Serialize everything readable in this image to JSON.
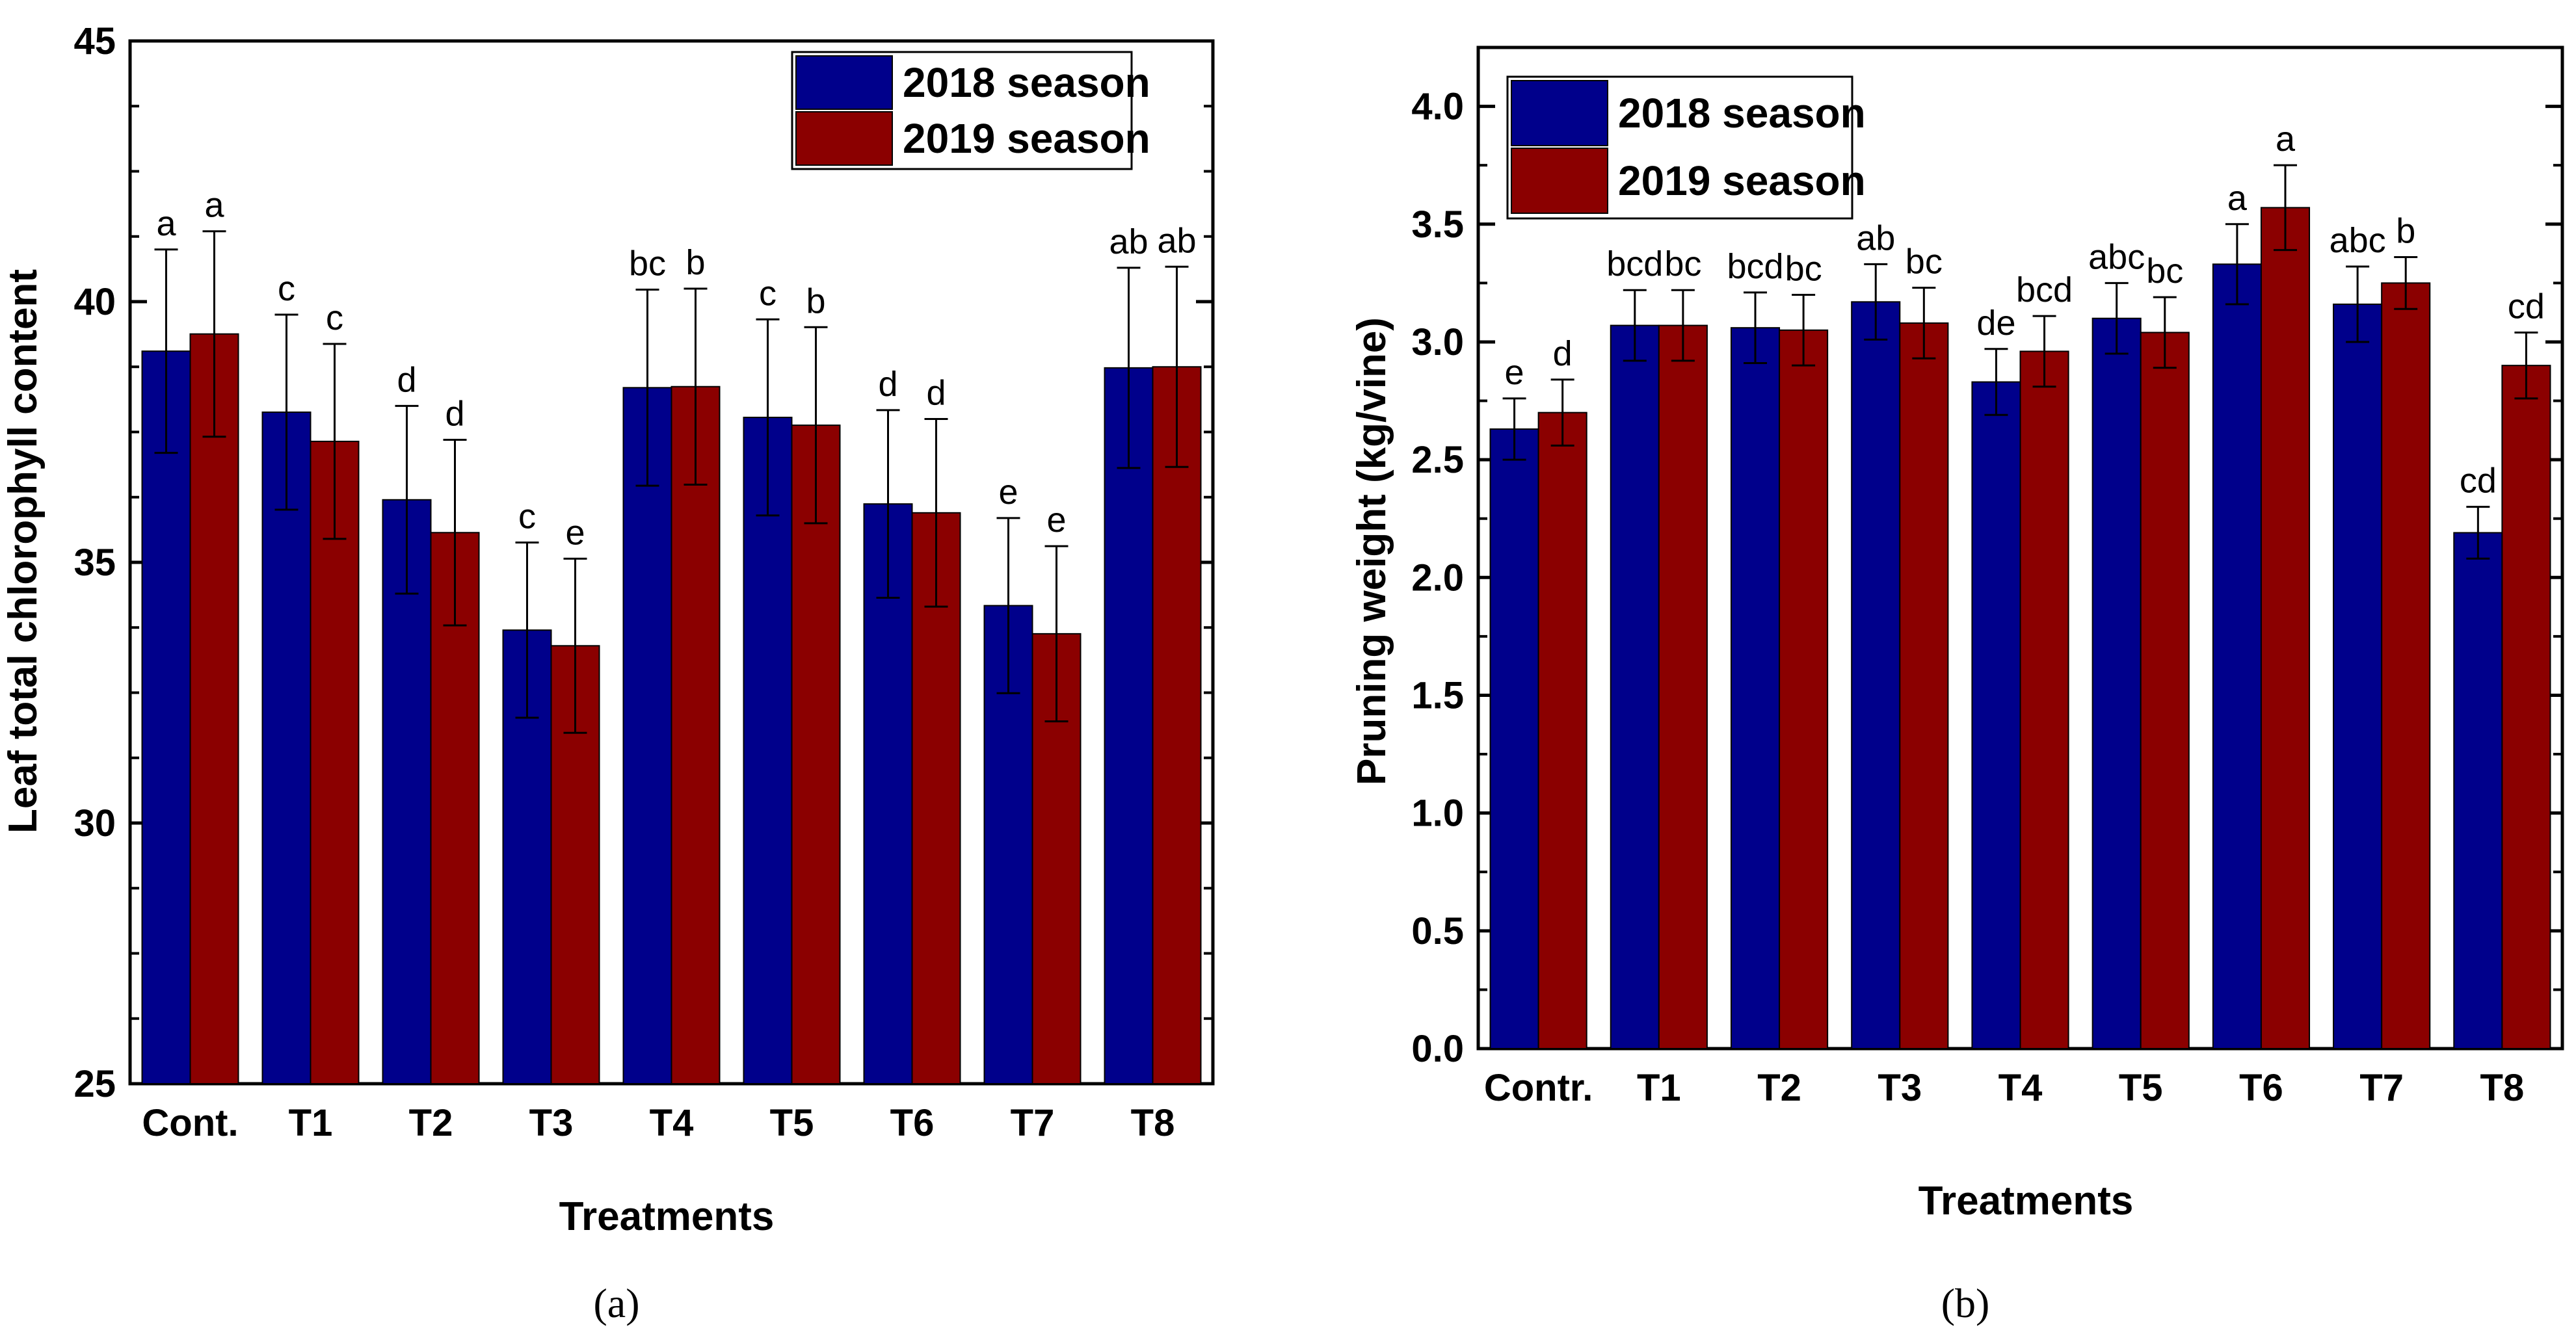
{
  "colors": {
    "season_2018": "#00008B",
    "season_2019": "#8B0000",
    "axis": "#000000"
  },
  "chart_data": [
    {
      "type": "bar",
      "panel_label": "(a)",
      "xlabel": "Treatments",
      "ylabel": "Leaf total chlorophyll content",
      "ylim": [
        25,
        45
      ],
      "yticks": [
        25,
        30,
        35,
        40,
        45
      ],
      "categories": [
        "Cont.",
        "T1",
        "T2",
        "T3",
        "T4",
        "T5",
        "T6",
        "T7",
        "T8"
      ],
      "legend_position": "top-right",
      "series": [
        {
          "name": "2018 season",
          "values": [
            39.05,
            37.88,
            36.2,
            33.7,
            38.35,
            37.78,
            36.12,
            34.17,
            38.73
          ],
          "errors": [
            1.95,
            1.87,
            1.8,
            1.68,
            1.88,
            1.88,
            1.8,
            1.68,
            1.92
          ],
          "letters": [
            "a",
            "c",
            "d",
            "c",
            "bc",
            "c",
            "d",
            "e",
            "ab"
          ]
        },
        {
          "name": "2019 season",
          "values": [
            39.38,
            37.32,
            35.57,
            33.4,
            38.37,
            37.63,
            35.95,
            33.63,
            38.75
          ],
          "errors": [
            1.97,
            1.87,
            1.78,
            1.67,
            1.88,
            1.88,
            1.8,
            1.68,
            1.92
          ],
          "letters": [
            "a",
            "c",
            "d",
            "e",
            "b",
            "b",
            "d",
            "e",
            "ab"
          ]
        }
      ]
    },
    {
      "type": "bar",
      "panel_label": "(b)",
      "xlabel": "Treatments",
      "ylabel": "Pruning weight (kg/vine)",
      "ylim": [
        0,
        4.25
      ],
      "yticks": [
        0.0,
        0.5,
        1.0,
        1.5,
        2.0,
        2.5,
        3.0,
        3.5,
        4.0
      ],
      "ytick_labels": [
        "0.0",
        "0.5",
        "1.0",
        "1.5",
        "2.0",
        "2.5",
        "3.0",
        "3.5",
        "4.0"
      ],
      "categories": [
        "Contr.",
        "T1",
        "T2",
        "T3",
        "T4",
        "T5",
        "T6",
        "T7",
        "T8"
      ],
      "legend_position": "top-left",
      "series": [
        {
          "name": "2018 season",
          "values": [
            2.63,
            3.07,
            3.06,
            3.17,
            2.83,
            3.1,
            3.33,
            3.16,
            2.19
          ],
          "errors": [
            0.13,
            0.15,
            0.15,
            0.16,
            0.14,
            0.15,
            0.17,
            0.16,
            0.11
          ],
          "letters": [
            "e",
            "bcd",
            "bcd",
            "ab",
            "de",
            "abc",
            "a",
            "abc",
            "cd"
          ]
        },
        {
          "name": "2019 season",
          "values": [
            2.7,
            3.07,
            3.05,
            3.08,
            2.96,
            3.04,
            3.57,
            3.25,
            2.9
          ],
          "errors": [
            0.14,
            0.15,
            0.15,
            0.15,
            0.15,
            0.15,
            0.18,
            0.11,
            0.14
          ],
          "letters": [
            "d",
            "bc",
            "bc",
            "bc",
            "bcd",
            "bc",
            "a",
            "b",
            "cd"
          ]
        }
      ]
    }
  ]
}
